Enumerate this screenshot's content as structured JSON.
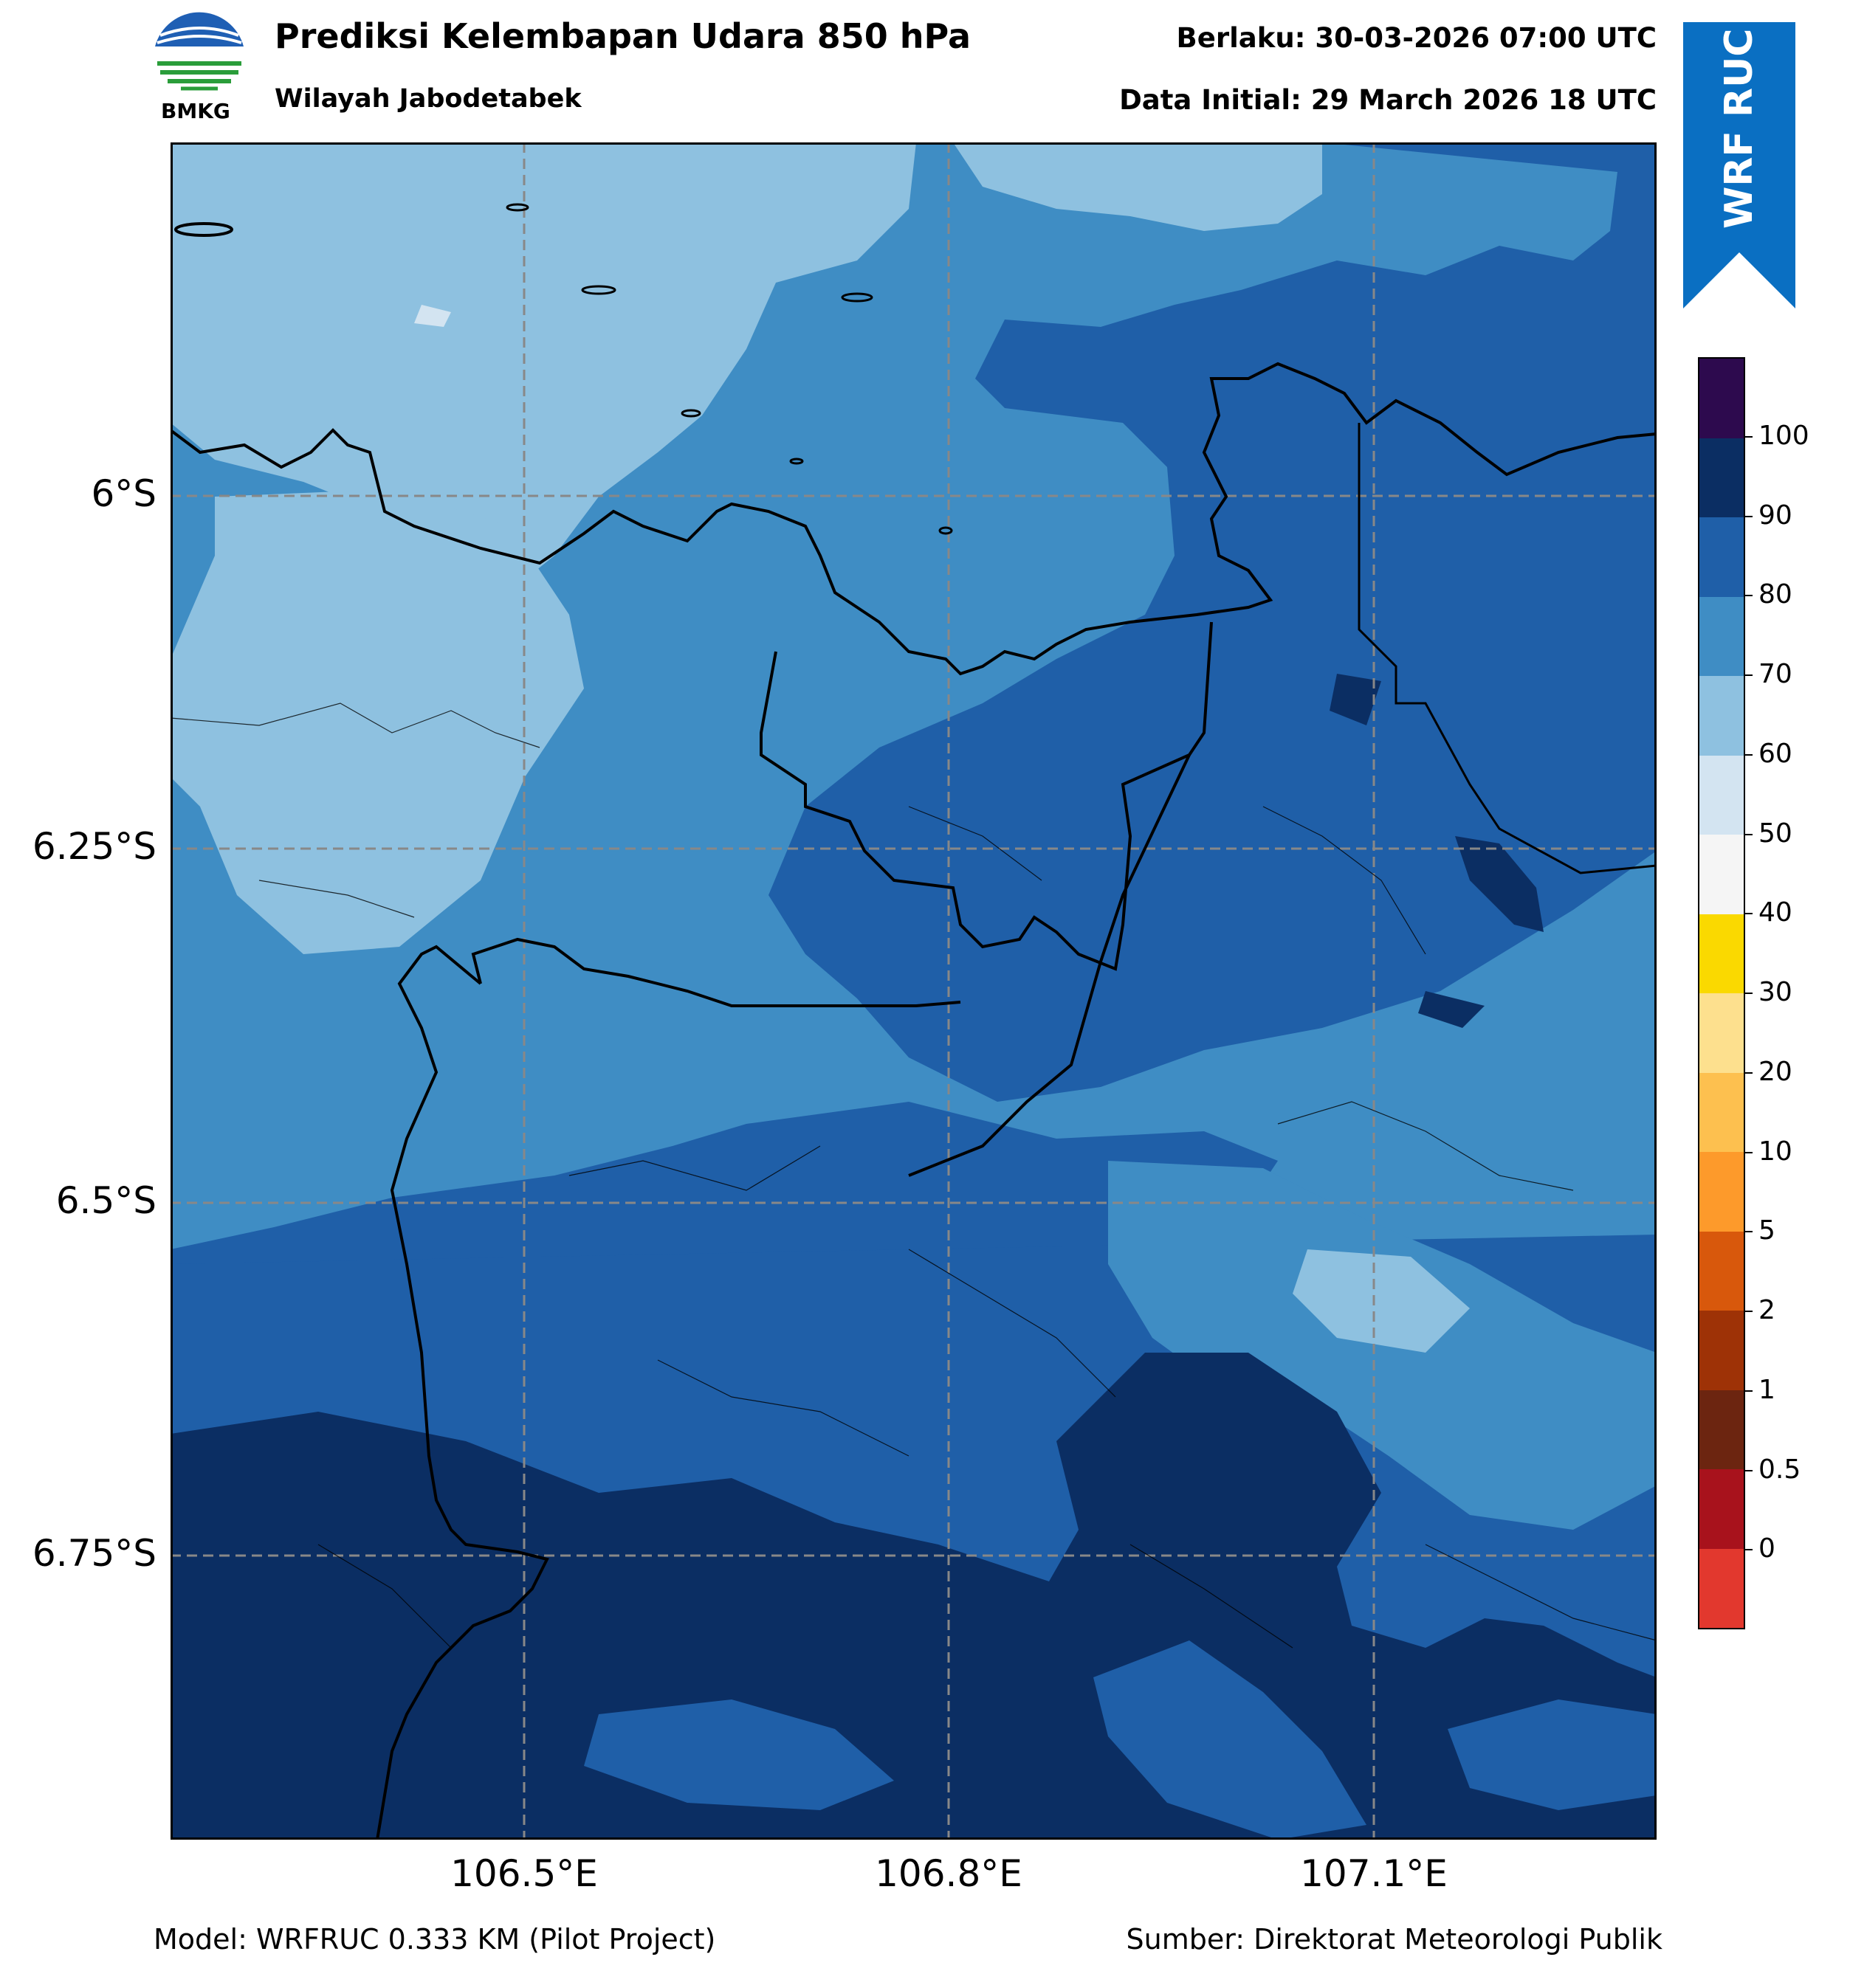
{
  "header": {
    "logo_text": "BMKG",
    "title": "Prediksi Kelembapan Udara 850 hPa",
    "subtitle": "Wilayah Jabodetabek",
    "valid_time": "Berlaku: 30-03-2026 07:00 UTC",
    "initial_time": "Data Initial: 29 March 2026 18 UTC",
    "badge": "WRF RUC"
  },
  "map": {
    "lat_ticks": [
      "6°S",
      "6.25°S",
      "6.5°S",
      "6.75°S"
    ],
    "lon_ticks": [
      "106.5°E",
      "106.8°E",
      "107.1°E"
    ],
    "gridlines": true,
    "frame_color": "#000000",
    "gridline_color": "#888888"
  },
  "colorbar": {
    "labels": [
      "100",
      "90",
      "80",
      "70",
      "60",
      "50",
      "40",
      "30",
      "20",
      "10",
      "5",
      "2",
      "1",
      "0.5",
      "0"
    ],
    "colors_top_to_bottom": [
      "#2d0a4e",
      "#0b2e63",
      "#1f5fa8",
      "#3f8dc4",
      "#8ec1e0",
      "#d3e4f1",
      "#f5f5f5",
      "#fad900",
      "#fde08e",
      "#fdc04f",
      "#fd9a2b",
      "#d8580c",
      "#9e3206",
      "#6c2510",
      "#a8121c",
      "#e2382e"
    ]
  },
  "footer": {
    "model": "Model: WRFRUC 0.333 KM (Pilot Project)",
    "source": "Sumber: Direktorat Meteorologi Publik"
  }
}
